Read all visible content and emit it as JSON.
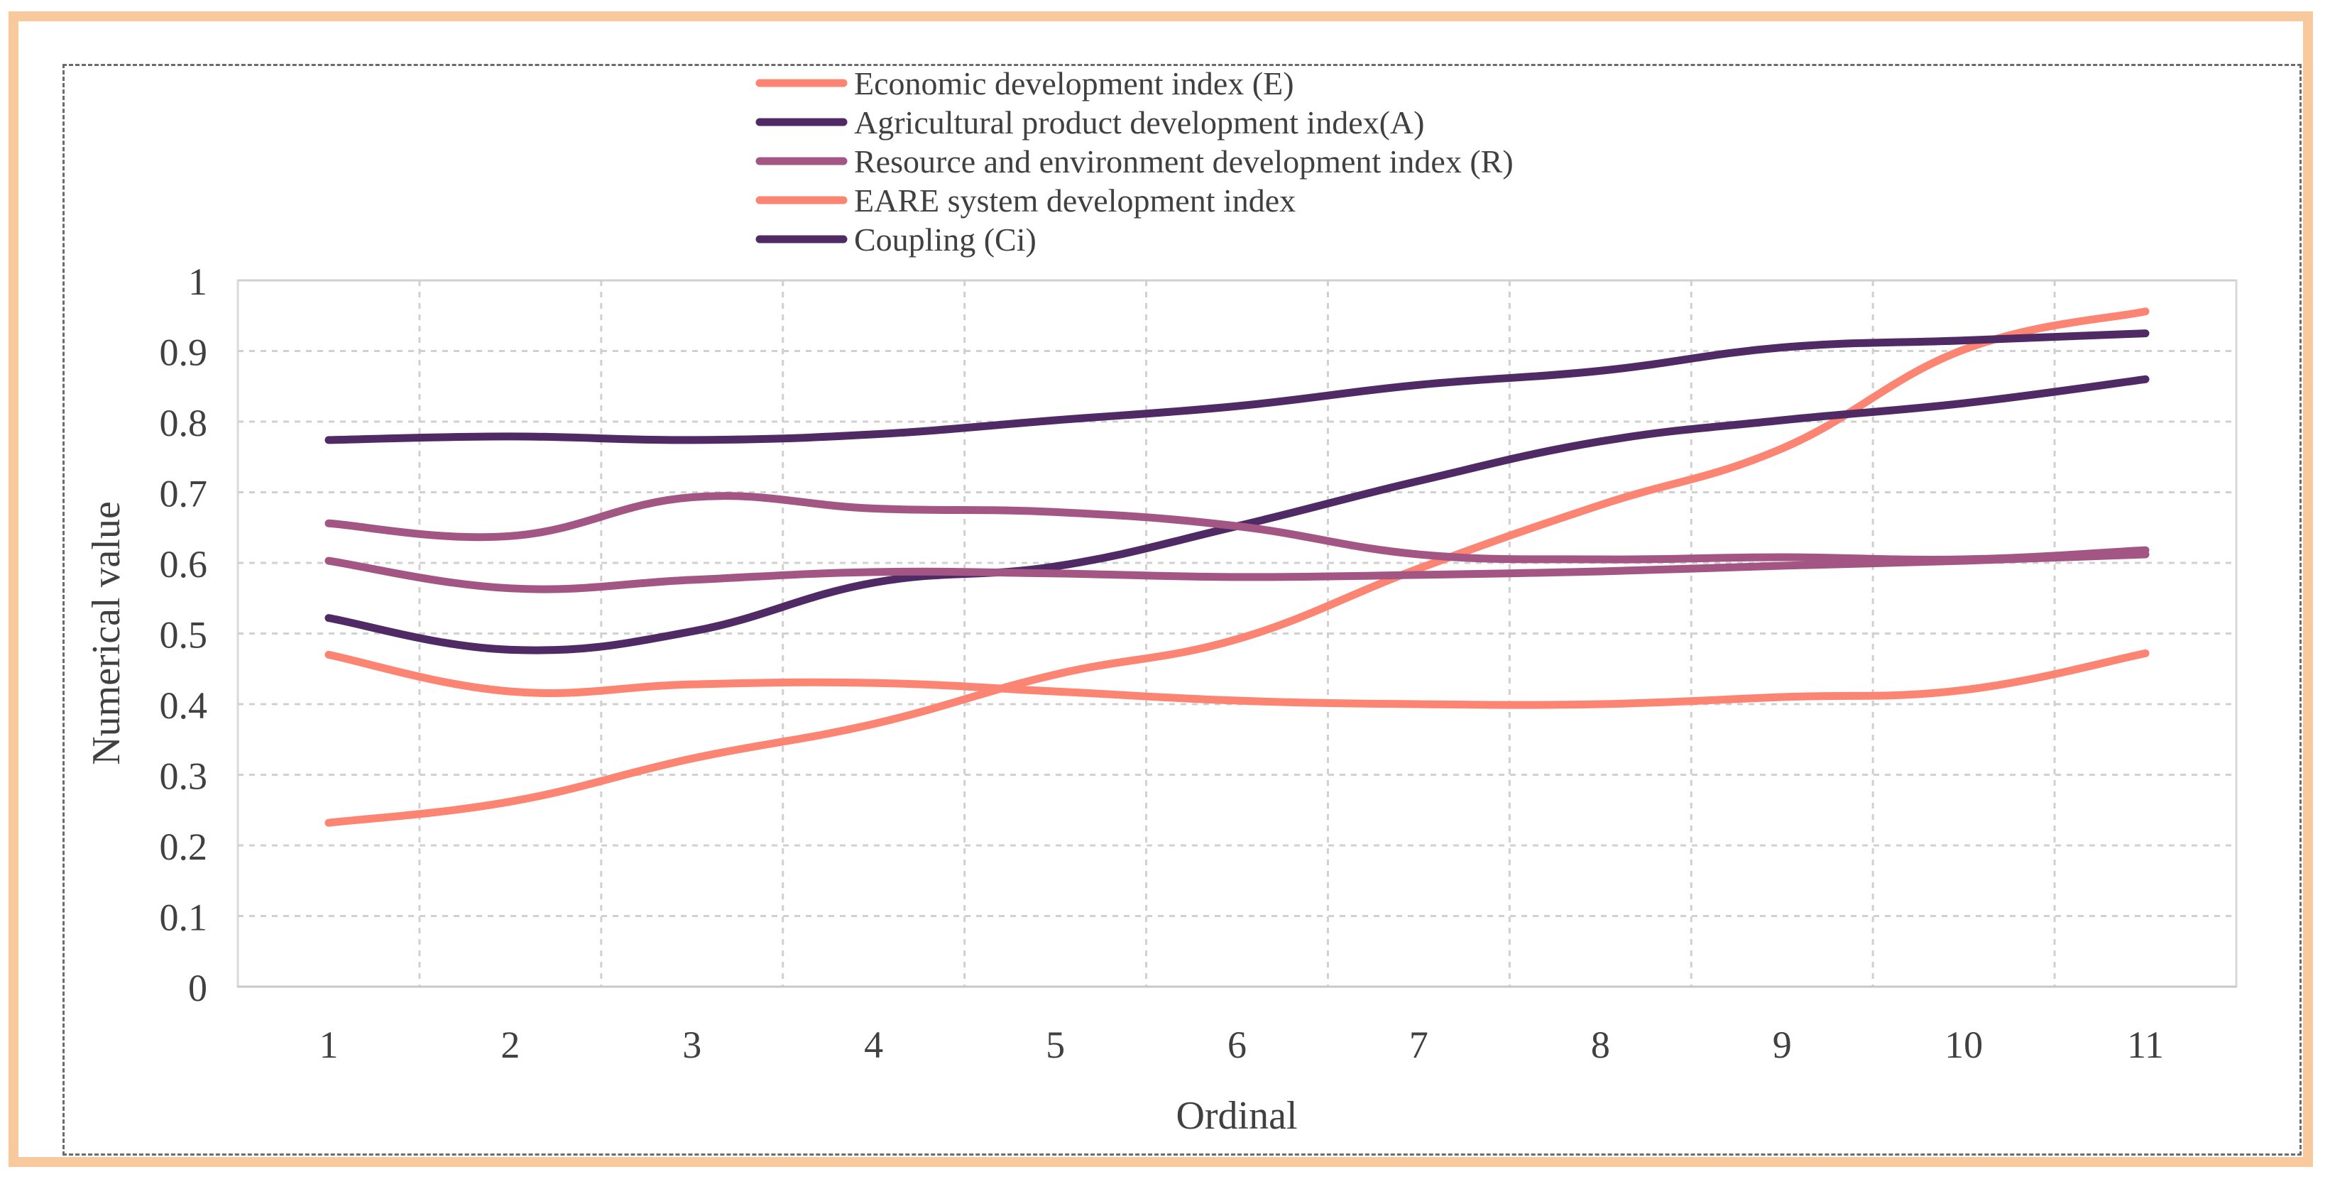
{
  "chart_data": {
    "type": "line",
    "title": "",
    "xlabel": "Ordinal",
    "ylabel": "Numerical value",
    "categories": [
      "1",
      "2",
      "3",
      "4",
      "5",
      "6",
      "7",
      "8",
      "9",
      "10",
      "11"
    ],
    "y_ticks": [
      "0",
      "0.1",
      "0.2",
      "0.3",
      "0.4",
      "0.5",
      "0.6",
      "0.7",
      "0.8",
      "0.9",
      "1"
    ],
    "ylim": [
      0,
      1
    ],
    "grid": true,
    "legend_position": "top",
    "series": [
      {
        "name": "Economic development index (E)",
        "color": "#fb8472",
        "values": [
          0.232,
          0.262,
          0.323,
          0.372,
          0.442,
          0.492,
          0.592,
          0.682,
          0.762,
          0.902,
          0.956
        ]
      },
      {
        "name": "Agricultural product development index(A)",
        "color": "#4f2a65",
        "values": [
          0.522,
          0.477,
          0.503,
          0.572,
          0.595,
          0.652,
          0.716,
          0.772,
          0.802,
          0.826,
          0.86
        ]
      },
      {
        "name": "Resource and environment development index (R)",
        "color": "#a35683",
        "values": [
          0.656,
          0.638,
          0.693,
          0.677,
          0.672,
          0.652,
          0.612,
          0.605,
          0.608,
          0.605,
          0.618
        ]
      },
      {
        "name": "EARE system development index",
        "color": "#fb8472",
        "values": [
          0.47,
          0.418,
          0.428,
          0.43,
          0.418,
          0.405,
          0.4,
          0.4,
          0.41,
          0.42,
          0.472
        ]
      },
      {
        "name": "Coupling (Ci)",
        "color": "#4f2a65",
        "values": [
          0.774,
          0.779,
          0.774,
          0.782,
          0.802,
          0.822,
          0.852,
          0.872,
          0.905,
          0.915,
          0.925
        ]
      },
      {
        "name": "",
        "color": "#a35683",
        "values": [
          0.603,
          0.564,
          0.576,
          0.587,
          0.585,
          0.58,
          0.583,
          0.588,
          0.596,
          0.603,
          0.612
        ]
      }
    ]
  }
}
